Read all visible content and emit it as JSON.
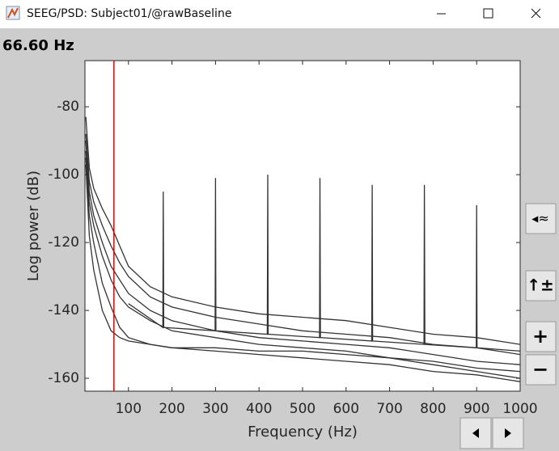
{
  "window_title": "SEEG/PSD: Subject01/@rawBaseline",
  "cursor_label": "66.60 Hz",
  "chart_data": {
    "type": "line",
    "xlabel": "Frequency (Hz)",
    "ylabel": "Log power  (dB)",
    "xlim": [
      0,
      1000
    ],
    "ylim": [
      -163.8,
      -66.4
    ],
    "xticks": [
      100,
      200,
      300,
      400,
      500,
      600,
      700,
      800,
      900,
      1000
    ],
    "yticks": [
      -160,
      -140,
      -120,
      -100,
      -80
    ],
    "grid": false,
    "cursor_x": 66.6,
    "cursor_color": "#e00000",
    "series": [
      {
        "color": "#333333",
        "x": [
          2,
          10,
          20,
          40,
          60,
          80,
          100,
          150,
          200,
          300,
          400,
          500,
          600,
          700,
          800,
          900,
          1000
        ],
        "values": [
          -83,
          -98,
          -104,
          -110,
          -115,
          -121,
          -127,
          -133,
          -136,
          -139,
          -141,
          -142,
          -143,
          -145,
          -147,
          -148,
          -150
        ]
      },
      {
        "color": "#333333",
        "x": [
          2,
          10,
          20,
          40,
          60,
          80,
          100,
          150,
          200,
          300,
          400,
          500,
          600,
          700,
          800,
          900,
          1000
        ],
        "values": [
          -88,
          -102,
          -108,
          -115,
          -121,
          -126,
          -130,
          -136,
          -139,
          -142,
          -144,
          -146,
          -147,
          -148,
          -150,
          -151,
          -153
        ]
      },
      {
        "color": "#333333",
        "x": [
          2,
          10,
          20,
          40,
          60,
          80,
          100,
          150,
          200,
          300,
          400,
          500,
          600,
          700,
          800,
          900,
          1000
        ],
        "values": [
          -90,
          -105,
          -112,
          -120,
          -127,
          -131,
          -135,
          -140,
          -143,
          -146,
          -148,
          -149,
          -150,
          -151,
          -153,
          -155,
          -156
        ]
      },
      {
        "color": "#333333",
        "x": [
          2,
          10,
          20,
          40,
          60,
          80,
          100,
          150,
          200,
          300,
          400,
          500,
          600,
          700,
          800,
          900,
          1000
        ],
        "values": [
          -93,
          -108,
          -115,
          -124,
          -131,
          -136,
          -139,
          -143,
          -146,
          -148,
          -150,
          -151,
          -152,
          -154,
          -155,
          -157,
          -158
        ]
      },
      {
        "color": "#333333",
        "x": [
          2,
          10,
          20,
          40,
          60,
          80,
          100,
          150,
          200,
          300,
          400,
          500,
          600,
          700,
          800,
          900,
          1000
        ],
        "values": [
          -95,
          -112,
          -120,
          -132,
          -139,
          -145,
          -148,
          -150,
          -151,
          -151,
          -152,
          -152,
          -153,
          -154,
          -156,
          -158,
          -160
        ]
      },
      {
        "color": "#333333",
        "x": [
          2,
          10,
          20,
          40,
          60,
          80,
          100,
          150,
          200,
          300,
          400,
          500,
          600,
          700,
          800,
          900,
          1000
        ],
        "values": [
          -97,
          -118,
          -128,
          -140,
          -146,
          -148,
          -149,
          -150,
          -151,
          -152,
          -153,
          -154,
          -155,
          -156,
          -158,
          -159,
          -161
        ]
      },
      {
        "color": "#333333",
        "x": [
          100,
          179,
          180,
          181,
          299,
          300,
          301,
          419,
          420,
          421,
          539,
          540,
          541,
          659,
          660,
          661,
          779,
          780,
          781,
          899,
          900,
          901,
          1000
        ],
        "values": [
          -138,
          -145,
          -105,
          -145,
          -146,
          -101,
          -146,
          -147,
          -100,
          -147,
          -148,
          -101,
          -148,
          -149,
          -103,
          -149,
          -150,
          -103,
          -150,
          -151,
          -109,
          -151,
          -152
        ]
      }
    ]
  }
}
